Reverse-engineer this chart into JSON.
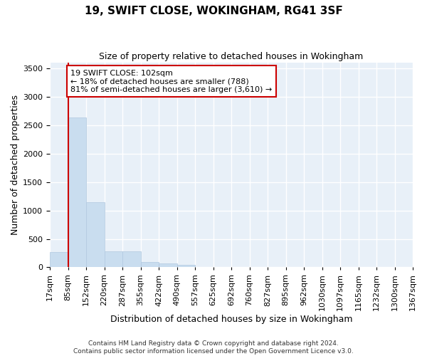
{
  "title": "19, SWIFT CLOSE, WOKINGHAM, RG41 3SF",
  "subtitle": "Size of property relative to detached houses in Wokingham",
  "xlabel": "Distribution of detached houses by size in Wokingham",
  "ylabel": "Number of detached properties",
  "bar_color": "#c9ddef",
  "bar_edge_color": "#b0c8e0",
  "bar_heights": [
    270,
    2640,
    1140,
    280,
    280,
    95,
    70,
    45,
    0,
    0,
    0,
    0,
    0,
    0,
    0,
    0,
    0,
    0,
    0,
    0
  ],
  "bin_labels": [
    "17sqm",
    "85sqm",
    "152sqm",
    "220sqm",
    "287sqm",
    "355sqm",
    "422sqm",
    "490sqm",
    "557sqm",
    "625sqm",
    "692sqm",
    "760sqm",
    "827sqm",
    "895sqm",
    "962sqm",
    "1030sqm",
    "1097sqm",
    "1165sqm",
    "1232sqm",
    "1300sqm",
    "1367sqm"
  ],
  "vline_x": 1,
  "vline_color": "#cc0000",
  "ylim": [
    0,
    3600
  ],
  "yticks": [
    0,
    500,
    1000,
    1500,
    2000,
    2500,
    3000,
    3500
  ],
  "annotation_text": "19 SWIFT CLOSE: 102sqm\n← 18% of detached houses are smaller (788)\n81% of semi-detached houses are larger (3,610) →",
  "annotation_box_color": "#ffffff",
  "annotation_box_edge_color": "#cc0000",
  "background_color": "#e8f0f8",
  "grid_color": "#ffffff",
  "footer_line1": "Contains HM Land Registry data © Crown copyright and database right 2024.",
  "footer_line2": "Contains public sector information licensed under the Open Government Licence v3.0.",
  "title_fontsize": 11,
  "subtitle_fontsize": 9,
  "ylabel_fontsize": 9,
  "xlabel_fontsize": 9,
  "annot_fontsize": 8,
  "tick_fontsize": 8,
  "footer_fontsize": 6.5
}
